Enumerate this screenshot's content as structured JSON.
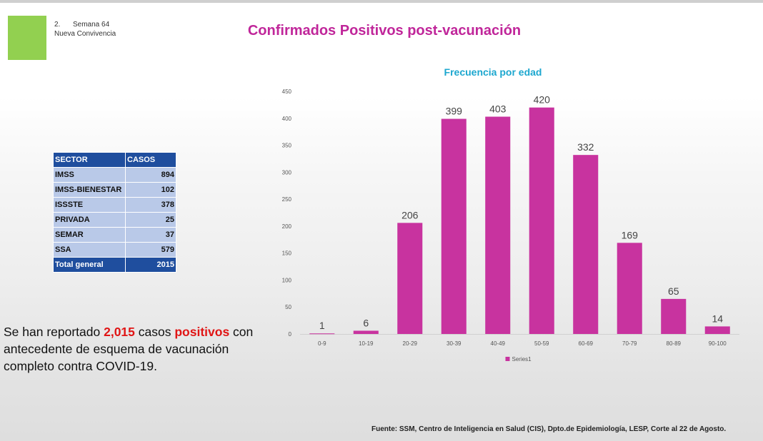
{
  "header": {
    "number": "2.",
    "week": "Semana 64",
    "subtitle": "Nueva Convivencia"
  },
  "title": "Confirmados Positivos post-vacunación",
  "sector_table": {
    "headers": [
      "SECTOR",
      "CASOS"
    ],
    "rows": [
      {
        "sector": "IMSS",
        "casos": "894"
      },
      {
        "sector": "IMSS-BIENESTAR",
        "casos": "102"
      },
      {
        "sector": "ISSSTE",
        "casos": "378"
      },
      {
        "sector": "PRIVADA",
        "casos": "25"
      },
      {
        "sector": "SEMAR",
        "casos": "37"
      },
      {
        "sector": "SSA",
        "casos": "579"
      }
    ],
    "total": {
      "sector": "Total general",
      "casos": "2015"
    }
  },
  "summary": {
    "part1": "Se han reportado ",
    "count": "2,015",
    "part2": " casos ",
    "word": "positivos",
    "part3": " con antecedente de esquema de vacunación completo contra COVID-19."
  },
  "source": "Fuente: SSM, Centro de Inteligencia en Salud (CIS), Dpto.de Epidemiología, LESP, Corte al 22 de Agosto.",
  "colors": {
    "title": "#c0269a",
    "bar": "#c8339f",
    "chart_title": "#1ca7cf",
    "highlight": "#e01515",
    "table_header": "#1f4e9e",
    "table_cell": "#b9c9e8",
    "green_square": "#92d050"
  },
  "chart_data": {
    "type": "bar",
    "title": "Frecuencia por edad",
    "categories": [
      "0-9",
      "10-19",
      "20-29",
      "30-39",
      "40-49",
      "50-59",
      "60-69",
      "70-79",
      "80-89",
      "90-100"
    ],
    "series": [
      {
        "name": "Series1",
        "values": [
          1,
          6,
          206,
          399,
          403,
          420,
          332,
          169,
          65,
          14
        ]
      }
    ],
    "yticks": [
      0,
      50,
      100,
      150,
      200,
      250,
      300,
      350,
      400,
      450
    ],
    "ylim": [
      0,
      450
    ],
    "xlabel": "",
    "ylabel": "",
    "grid": false,
    "legend": "bottom"
  }
}
